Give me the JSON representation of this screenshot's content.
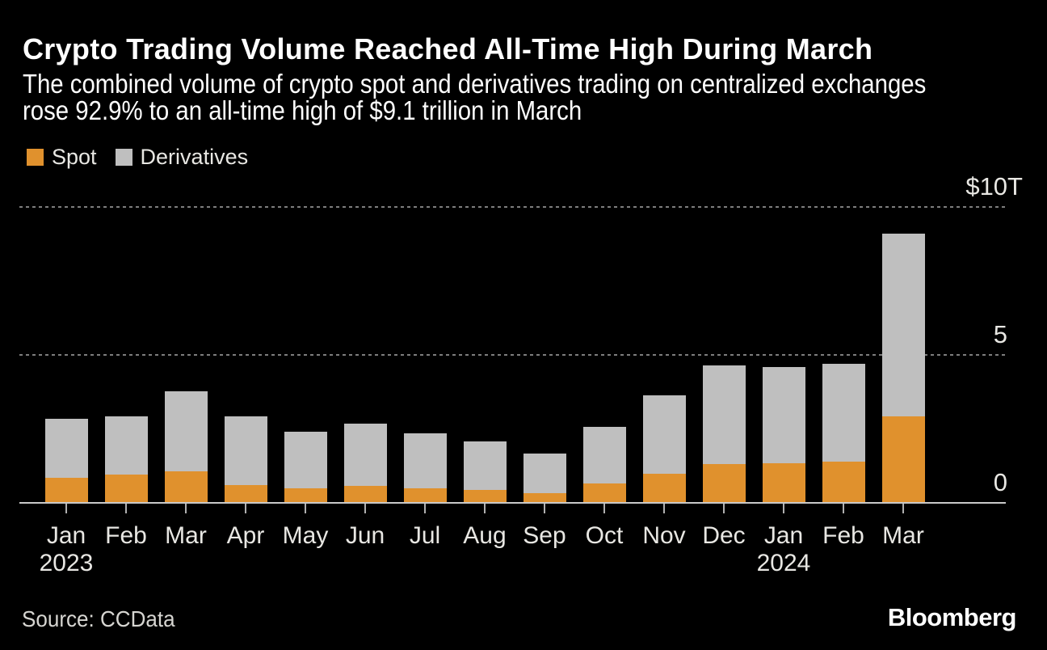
{
  "header": {
    "title": "Crypto Trading Volume Reached All-Time High During March",
    "subtitle_line1": "The combined volume of crypto spot and derivatives trading on centralized exchanges",
    "subtitle_line2": "rose 92.9% to an all-time high of $9.1 trillion in March"
  },
  "legend": [
    {
      "label": "Spot",
      "color": "#e0912d"
    },
    {
      "label": "Derivatives",
      "color": "#bfbfbf"
    }
  ],
  "chart_data": {
    "type": "bar",
    "stacked": true,
    "title": "Crypto Trading Volume Reached All-Time High During March",
    "unit": "USD trillions",
    "categories": [
      "Jan",
      "Feb",
      "Mar",
      "Apr",
      "May",
      "Jun",
      "Jul",
      "Aug",
      "Sep",
      "Oct",
      "Nov",
      "Dec",
      "Jan",
      "Feb",
      "Mar"
    ],
    "year_labels": [
      {
        "index": 0,
        "label": "2023"
      },
      {
        "index": 12,
        "label": "2024"
      }
    ],
    "series": [
      {
        "name": "Spot",
        "color": "#e0912d",
        "values": [
          0.87,
          0.97,
          1.08,
          0.64,
          0.53,
          0.61,
          0.52,
          0.47,
          0.35,
          0.67,
          1.01,
          1.34,
          1.37,
          1.43,
          2.95
        ]
      },
      {
        "name": "Derivatives",
        "color": "#bfbfbf",
        "values": [
          2.0,
          1.98,
          2.7,
          2.31,
          1.92,
          2.1,
          1.85,
          1.64,
          1.33,
          1.92,
          2.64,
          3.34,
          3.25,
          3.31,
          6.18
        ]
      }
    ],
    "totals": [
      2.87,
      2.95,
      3.78,
      2.95,
      2.45,
      2.71,
      2.37,
      2.11,
      1.68,
      2.59,
      3.65,
      4.68,
      4.62,
      4.74,
      9.13
    ],
    "ylim": [
      0,
      10
    ],
    "yticks": [
      {
        "value": 10,
        "label": "$10T"
      },
      {
        "value": 5,
        "label": "5"
      },
      {
        "value": 0,
        "label": "0"
      }
    ],
    "grid": "horizontal dashed at 5 and 10, solid baseline at 0",
    "legend_position": "top-left"
  },
  "footer": {
    "source": "Source: CCData",
    "brand": "Bloomberg"
  }
}
